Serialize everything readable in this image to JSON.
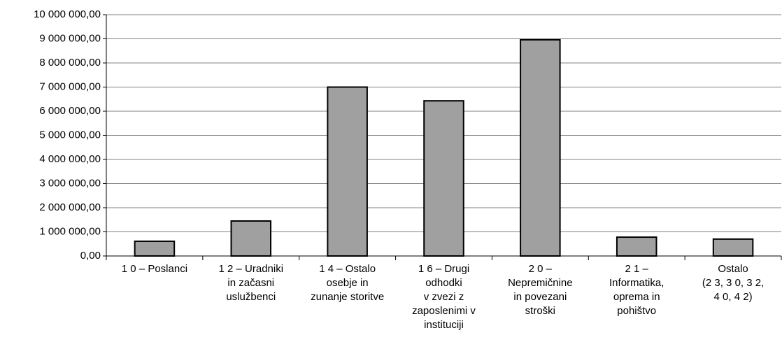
{
  "chart_data": {
    "type": "bar",
    "categories": [
      [
        "1 0 – Poslanci"
      ],
      [
        "1 2 – Uradniki",
        "in začasni",
        "uslužbenci"
      ],
      [
        "1 4 – Ostalo",
        "osebje in",
        "zunanje storitve"
      ],
      [
        "1 6 – Drugi",
        "odhodki",
        "v zvezi z",
        "zaposlenimi v",
        "instituciji"
      ],
      [
        "2 0 –",
        "Nepremičnine",
        "in povezani",
        "stroški"
      ],
      [
        "2 1 –",
        "Informatika,",
        "oprema in",
        "pohištvo"
      ],
      [
        "Ostalo",
        "(2 3, 3 0, 3 2,",
        "4 0, 4 2)"
      ]
    ],
    "values": [
      610000,
      1450000,
      7000000,
      6430000,
      8960000,
      780000,
      700000
    ],
    "color": "#a0a0a0",
    "ylim": [
      0,
      10000000
    ],
    "yticks": [
      {
        "value": 0,
        "label": "0,00"
      },
      {
        "value": 1000000,
        "label": "1 000 000,00"
      },
      {
        "value": 2000000,
        "label": "2 000 000,00"
      },
      {
        "value": 3000000,
        "label": "3 000 000,00"
      },
      {
        "value": 4000000,
        "label": "4 000 000,00"
      },
      {
        "value": 5000000,
        "label": "5 000 000,00"
      },
      {
        "value": 6000000,
        "label": "6 000 000,00"
      },
      {
        "value": 7000000,
        "label": "7 000 000,00"
      },
      {
        "value": 8000000,
        "label": "8 000 000,00"
      },
      {
        "value": 9000000,
        "label": "9 000 000,00"
      },
      {
        "value": 10000000,
        "label": "10 000 000,00"
      }
    ],
    "grid": true
  }
}
